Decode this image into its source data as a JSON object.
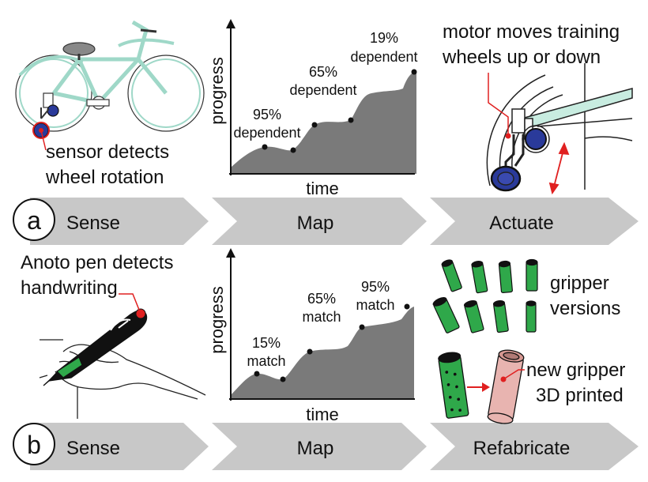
{
  "rows": [
    {
      "letter": "a",
      "stages": [
        "Sense",
        "Map",
        "Actuate"
      ],
      "left_caption": [
        "sensor detects",
        "wheel rotation"
      ],
      "right_caption": [
        "motor moves training",
        "wheels up or down"
      ],
      "chart": {
        "xlabel": "time",
        "ylabel": "progress",
        "annotations": [
          {
            "lines": [
              "95%",
              "dependent"
            ]
          },
          {
            "lines": [
              "65%",
              "dependent"
            ]
          },
          {
            "lines": [
              "19%",
              "dependent"
            ]
          }
        ]
      },
      "icons": [
        "bicycle-icon",
        "training-wheel-icon"
      ]
    },
    {
      "letter": "b",
      "stages": [
        "Sense",
        "Map",
        "Refabricate"
      ],
      "left_caption": [
        "Anoto pen detects",
        "handwriting"
      ],
      "right_caption_top": [
        "gripper",
        "versions"
      ],
      "right_caption_bottom": [
        "new gripper",
        "3D printed"
      ],
      "chart": {
        "xlabel": "time",
        "ylabel": "progress",
        "annotations": [
          {
            "lines": [
              "15%",
              "match"
            ]
          },
          {
            "lines": [
              "65%",
              "match"
            ]
          },
          {
            "lines": [
              "95%",
              "match"
            ]
          }
        ]
      },
      "icons": [
        "pen-hand-icon",
        "gripper-icon"
      ]
    }
  ],
  "colors": {
    "arrow": "#c8c8c8",
    "area": "#7a7a7a",
    "bike": "#9fd8c8",
    "wheel_blue": "#2a3a9a",
    "sensor_red": "#e02020",
    "gripper_green": "#2fa84a",
    "gripper_pink": "#e8b4b0"
  }
}
